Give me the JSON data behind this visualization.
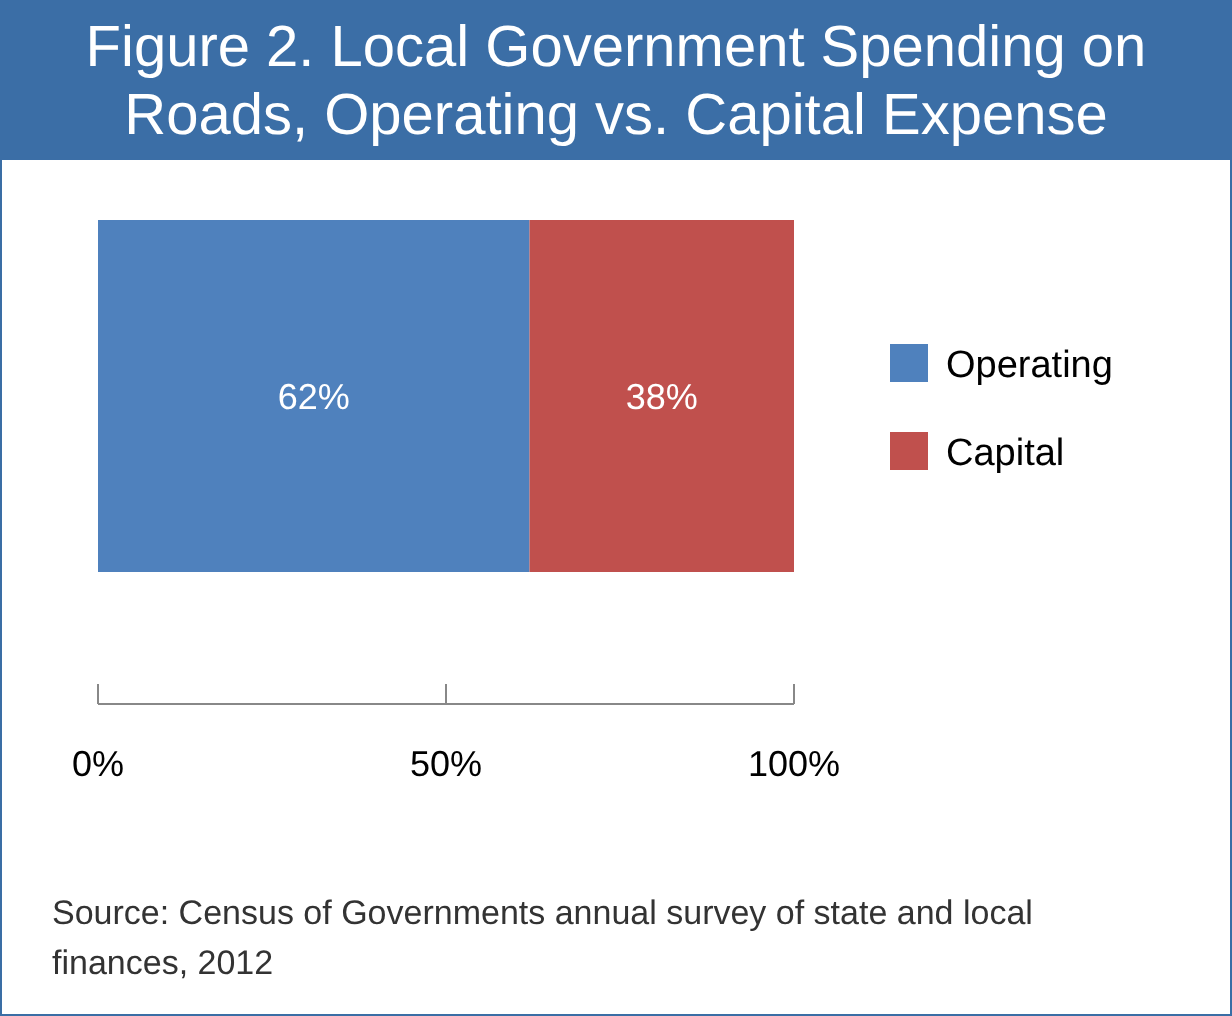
{
  "chart_data": {
    "type": "bar",
    "orientation": "horizontal",
    "stacked": true,
    "title": "Figure 2. Local Government Spending on Roads, Operating vs. Capital Expense",
    "categories": [
      null
    ],
    "series": [
      {
        "name": "Operating",
        "color": "#4f81bd",
        "values": [
          62
        ],
        "value_labels": [
          "62%"
        ]
      },
      {
        "name": "Capital",
        "color": "#c0504d",
        "values": [
          38
        ],
        "value_labels": [
          "38%"
        ]
      }
    ],
    "xlim": [
      0,
      100
    ],
    "xticks": [
      {
        "value": 0,
        "label": "0%"
      },
      {
        "value": 50,
        "label": "50%"
      },
      {
        "value": 100,
        "label": "100%"
      }
    ],
    "tick_labels": "x",
    "legend": "right",
    "grid": false,
    "annotations": [
      "Source: Census of Governments annual survey of state and local finances, 2012"
    ]
  }
}
